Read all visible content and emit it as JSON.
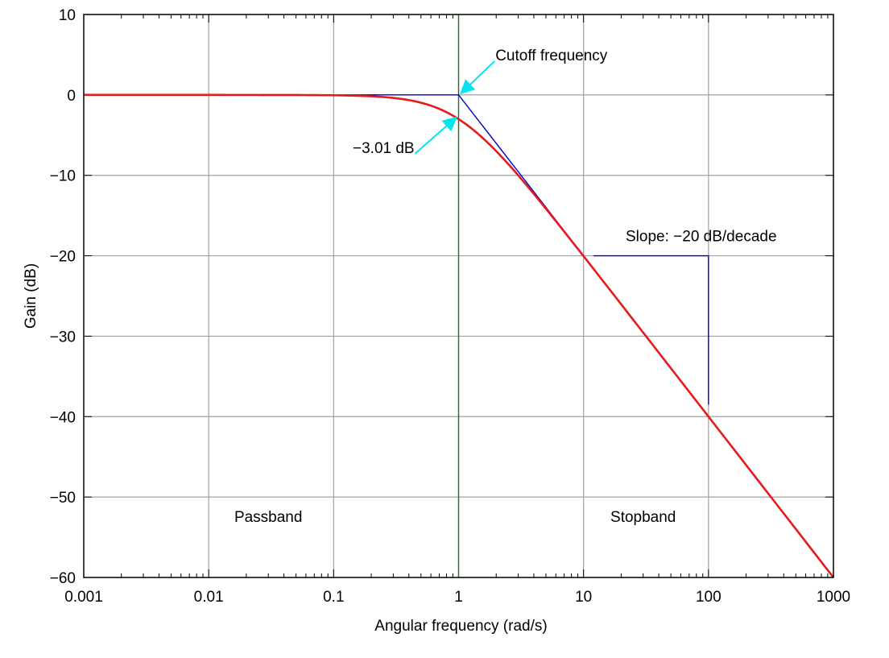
{
  "chart_data": {
    "type": "line",
    "xlabel": "Angular frequency (rad/s)",
    "ylabel": "Gain (dB)",
    "x_scale": "log",
    "xlim": [
      0.001,
      1000
    ],
    "ylim": [
      -60,
      10
    ],
    "x_ticks": [
      {
        "value": 0.001,
        "label": "0.001"
      },
      {
        "value": 0.01,
        "label": "0.01"
      },
      {
        "value": 0.1,
        "label": "0.1"
      },
      {
        "value": 1,
        "label": "1"
      },
      {
        "value": 10,
        "label": "10"
      },
      {
        "value": 100,
        "label": "100"
      },
      {
        "value": 1000,
        "label": "1000"
      }
    ],
    "y_ticks": [
      {
        "value": 10,
        "label": "10"
      },
      {
        "value": 0,
        "label": "0"
      },
      {
        "value": -10,
        "label": "−10"
      },
      {
        "value": -20,
        "label": "−20"
      },
      {
        "value": -30,
        "label": "−30"
      },
      {
        "value": -40,
        "label": "−40"
      },
      {
        "value": -50,
        "label": "−50"
      },
      {
        "value": -60,
        "label": "−60"
      }
    ],
    "grid": true,
    "series": [
      {
        "color": "#e41a1c",
        "x": [
          0.001,
          0.01,
          0.1,
          0.2,
          0.3,
          0.5,
          0.7,
          1,
          1.5,
          2,
          3,
          5,
          7,
          10,
          20,
          50,
          100,
          200,
          500,
          1000
        ],
        "y": [
          0,
          0,
          -0.04,
          -0.17,
          -0.37,
          -0.97,
          -1.74,
          -3.01,
          -5.12,
          -6.99,
          -10.0,
          -14.15,
          -17.0,
          -20.04,
          -26.02,
          -33.98,
          -40.0,
          -46.02,
          -53.98,
          -60.0
        ]
      },
      {
        "color": "#0000cc",
        "x": [
          0.001,
          1,
          1000
        ],
        "y": [
          0,
          0,
          -60
        ]
      }
    ],
    "cutoff_line": {
      "x": 1,
      "color": "#1a7a1a"
    },
    "slope_triangle": {
      "x_start": 12,
      "x_end": 100,
      "y_top": -20,
      "y_bottom": -38.5,
      "color": "#0000cc"
    },
    "annotations": {
      "cutoff": {
        "text": "Cutoff frequency",
        "target_x": 1,
        "target_y": 0,
        "text_x": 2,
        "text_y": 4,
        "arrow_color": "#00e5ee"
      },
      "minus3db": {
        "text": "−3.01 dB",
        "target_x": 1,
        "target_y": -3.01,
        "text_x": 0.14,
        "text_y": -7,
        "arrow_color": "#00e5ee"
      },
      "slope": {
        "text": "Slope: −20 dB/decade",
        "text_x": 13,
        "text_y": -17.8
      },
      "passband": {
        "text": "Passband",
        "text_x": 0.03,
        "text_y": -53
      },
      "stopband": {
        "text": "Stopband",
        "text_x": 30,
        "text_y": -53
      }
    }
  }
}
